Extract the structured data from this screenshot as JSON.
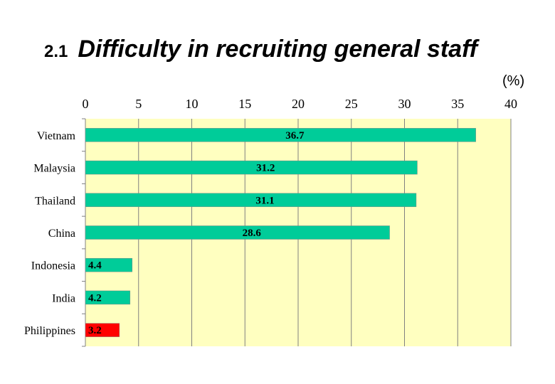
{
  "chart_data": {
    "type": "bar",
    "orientation": "horizontal",
    "section_number": "2.1",
    "title": "Difficulty in recruiting general staff",
    "unit": "(%)",
    "categories": [
      "Vietnam",
      "Malaysia",
      "Thailand",
      "China",
      "Indonesia",
      "India",
      "Philippines"
    ],
    "values": [
      36.7,
      31.2,
      31.1,
      28.6,
      4.4,
      4.2,
      3.2
    ],
    "value_labels": [
      "36.7",
      "31.2",
      "31.1",
      "28.6",
      "4.4",
      "4.2",
      "3.2"
    ],
    "xlim": [
      0,
      40
    ],
    "x_ticks": [
      0,
      5,
      10,
      15,
      20,
      25,
      30,
      35,
      40
    ],
    "x_axis_position": "top",
    "grid": true,
    "colors": {
      "plot_background": "#ffffc0",
      "bar_default": "#00cc99",
      "bar_highlight": "#ff0000",
      "grid": "#808080"
    },
    "highlight_category": "Philippines"
  }
}
